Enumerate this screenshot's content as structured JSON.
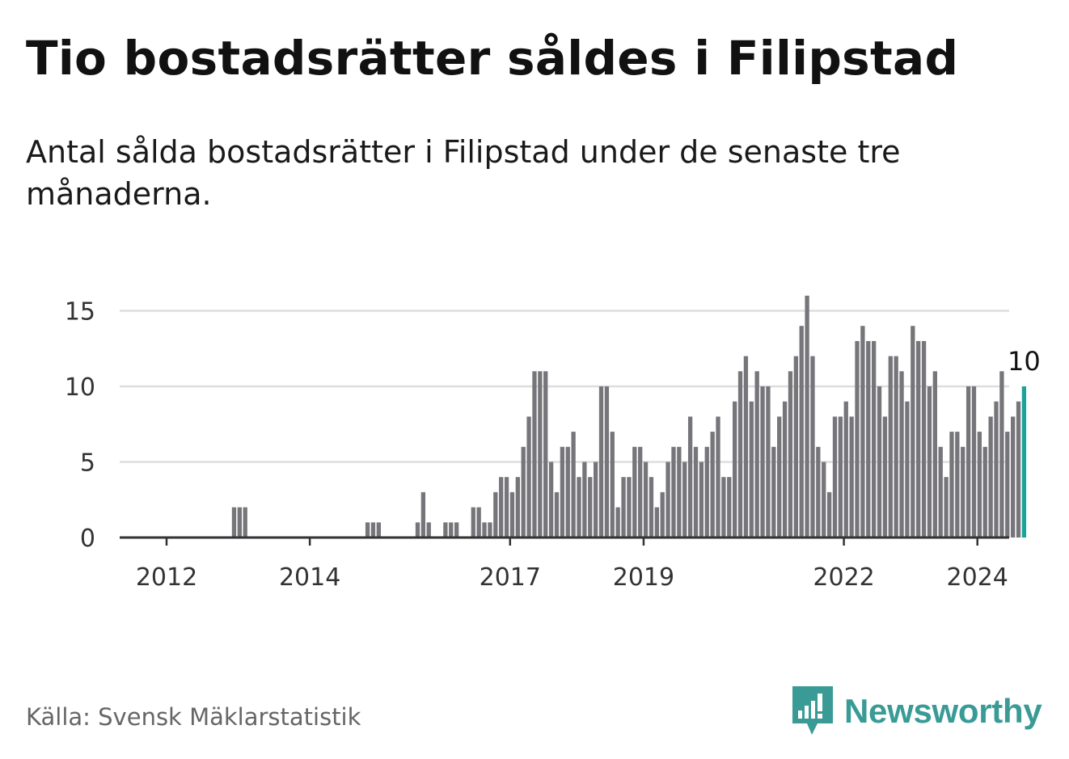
{
  "title": "Tio bostadsrätter såldes i Filipstad",
  "subtitle": "Antal sålda bostadsrätter i Filipstad under de senaste tre månaderna.",
  "source": "Källa: Svensk Mäklarstatistik",
  "brand": "Newsworthy",
  "colors": {
    "bar": "#76757a",
    "highlight": "#1aa39a",
    "grid": "#dddddd",
    "axis": "#333333",
    "brand": "#3a9b96"
  },
  "chart_data": {
    "type": "bar",
    "ylim": [
      0,
      16
    ],
    "yticks": [
      "0",
      "5",
      "10",
      "15"
    ],
    "xticks": [
      "2012",
      "2014",
      "2017",
      "2019",
      "2022",
      "2024"
    ],
    "highlight_label": "10",
    "values": [
      0,
      0,
      0,
      0,
      0,
      0,
      0,
      0,
      0,
      0,
      2,
      2,
      2,
      0,
      0,
      0,
      0,
      0,
      0,
      0,
      0,
      0,
      0,
      0,
      0,
      0,
      0,
      0,
      0,
      0,
      0,
      0,
      0,
      0,
      1,
      1,
      1,
      0,
      0,
      0,
      0,
      0,
      0,
      1,
      3,
      1,
      0,
      0,
      1,
      1,
      1,
      0,
      0,
      2,
      2,
      1,
      1,
      3,
      4,
      4,
      3,
      4,
      6,
      8,
      11,
      11,
      11,
      5,
      3,
      6,
      6,
      7,
      4,
      5,
      4,
      5,
      10,
      10,
      7,
      2,
      4,
      4,
      6,
      6,
      5,
      4,
      2,
      3,
      5,
      6,
      6,
      5,
      8,
      6,
      5,
      6,
      7,
      8,
      4,
      4,
      9,
      11,
      12,
      9,
      11,
      10,
      10,
      6,
      8,
      9,
      11,
      12,
      14,
      16,
      12,
      6,
      5,
      3,
      8,
      8,
      9,
      8,
      13,
      14,
      13,
      13,
      10,
      8,
      12,
      12,
      11,
      9,
      14,
      13,
      13,
      10,
      11,
      6,
      4,
      7,
      7,
      6,
      10,
      10,
      7,
      6,
      8,
      9,
      11,
      7,
      8,
      9,
      10
    ]
  }
}
